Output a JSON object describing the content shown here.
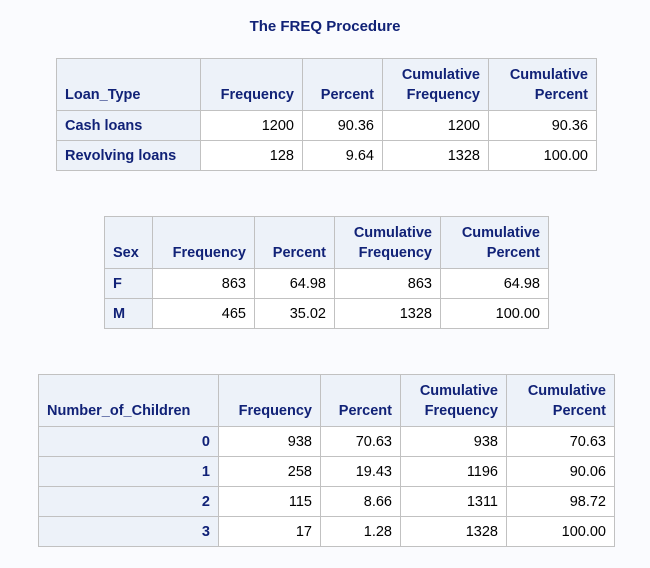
{
  "title": "The FREQ Procedure",
  "table1": {
    "headers": [
      "Loan_Type",
      "Frequency",
      "Percent",
      "Cumulative Frequency",
      "Cumulative Percent"
    ],
    "rows": [
      [
        "Cash loans",
        "1200",
        "90.36",
        "1200",
        "90.36"
      ],
      [
        "Revolving loans",
        "128",
        "9.64",
        "1328",
        "100.00"
      ]
    ]
  },
  "table2": {
    "headers": [
      "Sex",
      "Frequency",
      "Percent",
      "Cumulative Frequency",
      "Cumulative Percent"
    ],
    "rows": [
      [
        "F",
        "863",
        "64.98",
        "863",
        "64.98"
      ],
      [
        "M",
        "465",
        "35.02",
        "1328",
        "100.00"
      ]
    ]
  },
  "table3": {
    "headers": [
      "Number_of_Children",
      "Frequency",
      "Percent",
      "Cumulative Frequency",
      "Cumulative Percent"
    ],
    "rows": [
      [
        "0",
        "938",
        "70.63",
        "938",
        "70.63"
      ],
      [
        "1",
        "258",
        "19.43",
        "1196",
        "90.06"
      ],
      [
        "2",
        "115",
        "8.66",
        "1311",
        "98.72"
      ],
      [
        "3",
        "17",
        "1.28",
        "1328",
        "100.00"
      ]
    ]
  }
}
